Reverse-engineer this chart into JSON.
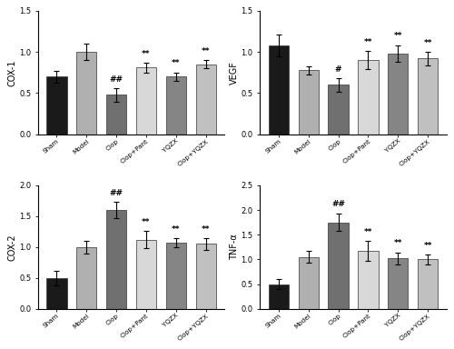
{
  "panels": [
    {
      "ylabel": "COX-1",
      "ylim": [
        0,
        1.5
      ],
      "yticks": [
        0.0,
        0.5,
        1.0,
        1.5
      ],
      "categories": [
        "Sham",
        "Model",
        "Clop",
        "Clop+Pant",
        "YQZX",
        "Clop+YQZX"
      ],
      "values": [
        0.7,
        1.0,
        0.48,
        0.81,
        0.7,
        0.85
      ],
      "errors": [
        0.07,
        0.1,
        0.08,
        0.06,
        0.05,
        0.05
      ],
      "colors": [
        "#1a1a1a",
        "#b0b0b0",
        "#707070",
        "#d8d8d8",
        "#858585",
        "#c0c0c0"
      ],
      "annotations": [
        "",
        "",
        "##",
        "**",
        "**",
        "**"
      ]
    },
    {
      "ylabel": "VEGF",
      "ylim": [
        0,
        1.5
      ],
      "yticks": [
        0.0,
        0.5,
        1.0,
        1.5
      ],
      "categories": [
        "Sham",
        "Model",
        "Clop",
        "Clop+Pant",
        "YQZX",
        "Clop+YQZX"
      ],
      "values": [
        1.08,
        0.78,
        0.6,
        0.9,
        0.98,
        0.92
      ],
      "errors": [
        0.13,
        0.05,
        0.08,
        0.11,
        0.1,
        0.08
      ],
      "colors": [
        "#1a1a1a",
        "#b0b0b0",
        "#707070",
        "#d8d8d8",
        "#858585",
        "#c0c0c0"
      ],
      "annotations": [
        "",
        "",
        "#",
        "**",
        "**",
        "**"
      ]
    },
    {
      "ylabel": "COX-2",
      "ylim": [
        0,
        2.0
      ],
      "yticks": [
        0.0,
        0.5,
        1.0,
        1.5,
        2.0
      ],
      "categories": [
        "Sham",
        "Model",
        "Clop",
        "Clop+Pant",
        "YQZX",
        "Clop+YQZX"
      ],
      "values": [
        0.5,
        1.0,
        1.6,
        1.12,
        1.07,
        1.05
      ],
      "errors": [
        0.12,
        0.1,
        0.13,
        0.14,
        0.07,
        0.09
      ],
      "colors": [
        "#1a1a1a",
        "#b0b0b0",
        "#707070",
        "#d8d8d8",
        "#858585",
        "#c0c0c0"
      ],
      "annotations": [
        "",
        "",
        "##",
        "**",
        "**",
        "**"
      ]
    },
    {
      "ylabel": "TNF-α",
      "ylim": [
        0,
        2.5
      ],
      "yticks": [
        0.0,
        0.5,
        1.0,
        1.5,
        2.0,
        2.5
      ],
      "categories": [
        "Sham",
        "Model",
        "Clop",
        "Clop+Pant",
        "YQZX",
        "Clop+YQZX"
      ],
      "values": [
        0.5,
        1.05,
        1.75,
        1.17,
        1.02,
        1.0
      ],
      "errors": [
        0.1,
        0.12,
        0.18,
        0.2,
        0.12,
        0.1
      ],
      "colors": [
        "#1a1a1a",
        "#b0b0b0",
        "#707070",
        "#d8d8d8",
        "#858585",
        "#c0c0c0"
      ],
      "annotations": [
        "",
        "",
        "##",
        "**",
        "**",
        "**"
      ]
    }
  ],
  "background_color": "#ffffff"
}
